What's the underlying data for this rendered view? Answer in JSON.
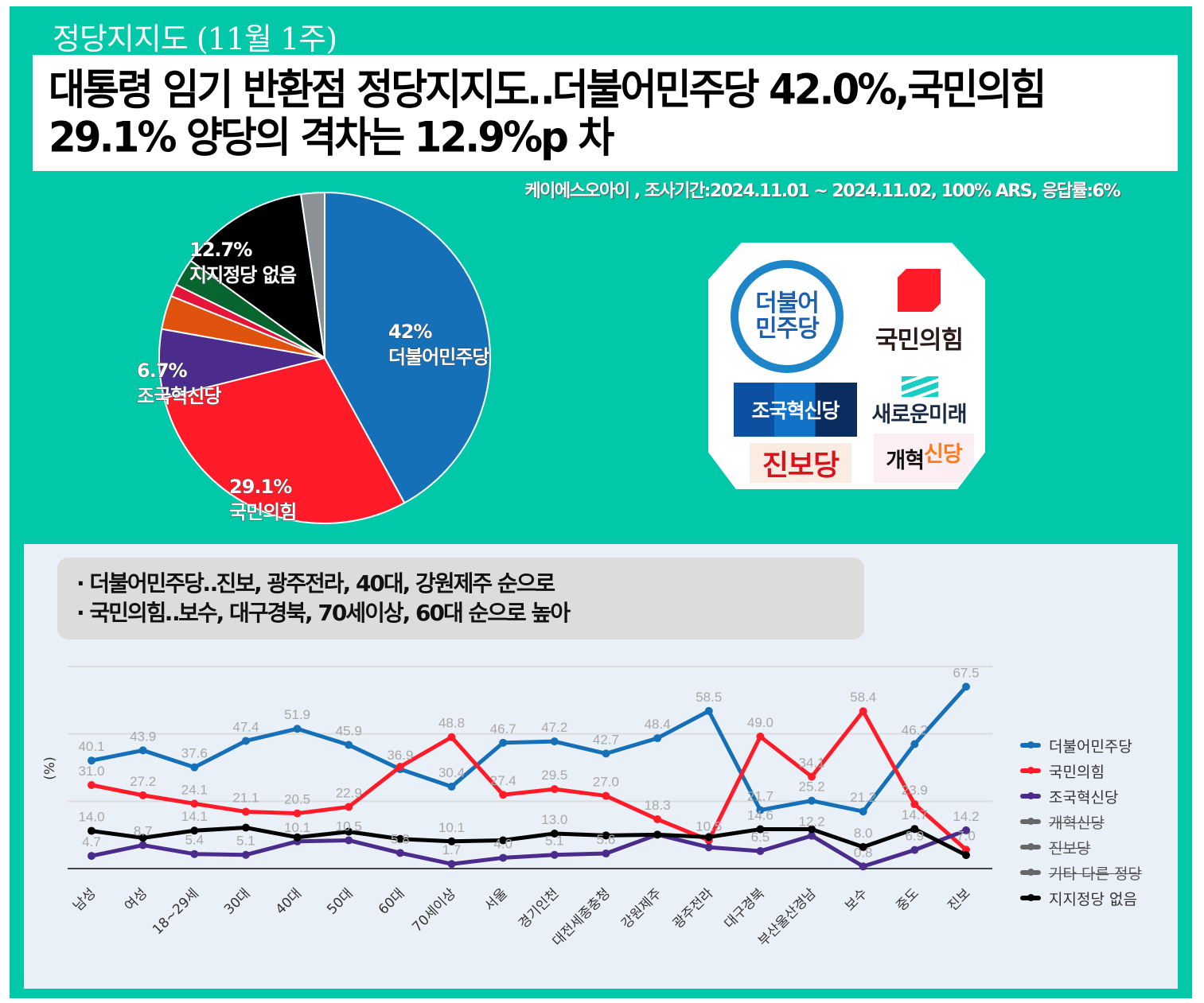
{
  "header": {
    "title": "정당지지도 (11월 1주)",
    "headline_line1": "대통령 임기 반환점 정당지지도‥더불어민주당 42.0%,국민의힘",
    "headline_line2": "29.1% 양당의 격차는 12.9%p 차",
    "source": "케이에스오아이 , 조사기간:2024.11.01 ~ 2024.11.02, 100% ARS, 응답률:6%"
  },
  "logos": {
    "democratic": "더불어\n민주당",
    "ppp": "국민의힘",
    "rebuild": "조국혁신당",
    "newfuture": "새로운미래",
    "progressive": "진보당",
    "reform": "개혁신당",
    "reform_a": "개혁",
    "reform_b": "신당"
  },
  "notes": {
    "line1": "· 더불어민주당‥진보, 광주전라, 40대, 강원제주 순으로",
    "line2": "· 국민의힘‥보수, 대구경북, 70세이상, 60대 순으로 높아"
  },
  "chart_data": [
    {
      "type": "pie",
      "title": "정당지지도",
      "slices": [
        {
          "name": "더불어민주당",
          "value": 42.0,
          "label_pct": "42%",
          "label_name": "더불어민주당",
          "color": "#1570b8"
        },
        {
          "name": "국민의힘",
          "value": 29.1,
          "label_pct": "29.1%",
          "label_name": "국민의힘",
          "color": "#ff1c28"
        },
        {
          "name": "조국혁신당",
          "value": 6.7,
          "label_pct": "6.7%",
          "label_name": "조국혁신당",
          "color": "#4b2c8c"
        },
        {
          "name": "개혁신당",
          "value": 3.3,
          "color": "#e0530f"
        },
        {
          "name": "진보당",
          "value": 1.2,
          "color": "#e3153a"
        },
        {
          "name": "새로운미래",
          "value": 2.7,
          "color": "#08652f"
        },
        {
          "name": "지지정당 없음",
          "value": 12.7,
          "label_pct": "12.7%",
          "label_name": "지지정당 없음",
          "color": "#000000"
        },
        {
          "name": "기타",
          "value": 2.3,
          "color": "#8c9196"
        }
      ]
    },
    {
      "type": "line",
      "ylabel": "(%)",
      "ylim": [
        0,
        75
      ],
      "grid": true,
      "legend": "right",
      "categories": [
        "남성",
        "여성",
        "18~29세",
        "30대",
        "40대",
        "50대",
        "60대",
        "70세이상",
        "서울",
        "경기인천",
        "대전세종충청",
        "강원제주",
        "광주전라",
        "대구경북",
        "부산울산경남",
        "보수",
        "중도",
        "진보"
      ],
      "series": [
        {
          "name": "더불어민주당",
          "color": "#1570b8",
          "hidden": false,
          "values": [
            40.1,
            43.9,
            37.6,
            47.4,
            51.9,
            45.9,
            36.9,
            30.4,
            46.7,
            47.2,
            42.7,
            48.4,
            58.5,
            21.7,
            25.2,
            21.2,
            46.2,
            67.5
          ],
          "labels": [
            "40.1",
            "43.9",
            "37.6",
            "47.4",
            "51.9",
            "45.9",
            "36.9",
            "30.4",
            "46.7",
            "47.2",
            "42.7",
            "48.4",
            "58.5",
            "21.7",
            "25.2",
            "21.2",
            "46.2",
            "67.5"
          ]
        },
        {
          "name": "국민의힘",
          "color": "#ff1c28",
          "hidden": false,
          "values": [
            31.0,
            27.2,
            24.1,
            21.1,
            20.5,
            22.9,
            37.8,
            48.8,
            27.4,
            29.5,
            27.0,
            18.3,
            10.5,
            49.0,
            34.1,
            58.4,
            23.9,
            7.0
          ],
          "labels": [
            "31.0",
            "27.2",
            "24.1",
            "21.1",
            "20.5",
            "22.9",
            null,
            "48.8",
            "27.4",
            "29.5",
            "27.0",
            "18.3",
            "10.5",
            "49.0",
            "34.1",
            "58.4",
            "23.9",
            "7.0"
          ]
        },
        {
          "name": "조국혁신당",
          "color": "#4b2c8c",
          "hidden": false,
          "values": [
            4.7,
            8.7,
            5.4,
            5.1,
            10.1,
            10.5,
            5.8,
            1.7,
            4.0,
            5.1,
            5.6,
            12.6,
            7.9,
            6.5,
            12.2,
            0.8,
            6.9,
            14.2
          ],
          "labels": [
            "4.7",
            "8.7",
            "5.4",
            "5.1",
            "10.1",
            "10.5",
            "5.8",
            "1.7",
            "4.0",
            "5.1",
            "5.6",
            null,
            null,
            "6.5",
            "12.2",
            "0.8",
            "6.9",
            "14.2"
          ]
        },
        {
          "name": "개혁신당",
          "color": "#666666",
          "hidden": true
        },
        {
          "name": "진보당",
          "color": "#666666",
          "hidden": true
        },
        {
          "name": "기타 다른 정당",
          "color": "#666666",
          "hidden": true
        },
        {
          "name": "지지정당 없음",
          "color": "#000000",
          "hidden": false,
          "values": [
            14.0,
            11.4,
            14.1,
            15.2,
            11.6,
            13.7,
            11.0,
            10.1,
            10.5,
            13.0,
            12.3,
            12.6,
            11.7,
            14.6,
            14.6,
            8.0,
            14.7,
            5.0
          ],
          "labels": [
            "14.0",
            null,
            "14.1",
            null,
            null,
            null,
            null,
            "10.1",
            null,
            "13.0",
            null,
            null,
            null,
            "14.6",
            null,
            "8.0",
            "14.7",
            null
          ]
        }
      ]
    }
  ]
}
